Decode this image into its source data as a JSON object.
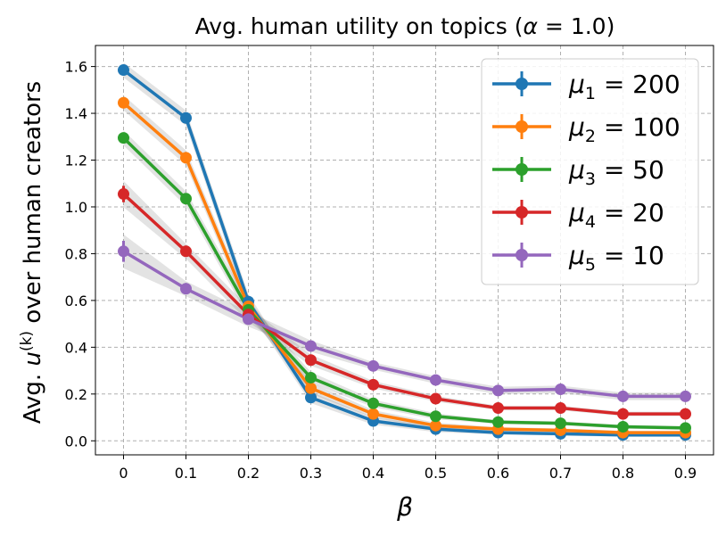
{
  "chart_data": {
    "type": "line",
    "title_prefix": "Avg. human utility on topics (",
    "title_param": "α",
    "title_suffix": " = 1.0)",
    "xlabel": "β",
    "ylabel_prefix": "Avg. ",
    "ylabel_var": "u",
    "ylabel_sup": "(k)",
    "ylabel_suffix": " over human creators",
    "x": [
      0,
      0.1,
      0.2,
      0.3,
      0.4,
      0.5,
      0.6,
      0.7,
      0.8,
      0.9
    ],
    "x_tick_labels": [
      "0",
      "0.1",
      "0.2",
      "0.3",
      "0.4",
      "0.5",
      "0.6",
      "0.7",
      "0.8",
      "0.9"
    ],
    "y_ticks": [
      0.0,
      0.2,
      0.4,
      0.6,
      0.8,
      1.0,
      1.2,
      1.4,
      1.6
    ],
    "y_tick_labels": [
      "0.0",
      "0.2",
      "0.4",
      "0.6",
      "0.8",
      "1.0",
      "1.2",
      "1.4",
      "1.6"
    ],
    "xlim": [
      -0.045,
      0.945
    ],
    "ylim": [
      -0.06,
      1.69
    ],
    "grid": true,
    "legend_position": "top-right",
    "series": [
      {
        "name": "μ1 = 200",
        "sym": "μ",
        "sub": "1",
        "eq": " = 200",
        "color": "#1f77b4",
        "values": [
          1.585,
          1.38,
          0.595,
          0.185,
          0.085,
          0.05,
          0.035,
          0.03,
          0.025,
          0.025
        ],
        "errors": [
          0.02,
          0.02,
          0.02,
          0.015,
          0.01,
          0.008,
          0.005,
          0.005,
          0.005,
          0.005
        ]
      },
      {
        "name": "μ2 = 100",
        "sym": "μ",
        "sub": "2",
        "eq": " = 100",
        "color": "#ff7f0e",
        "values": [
          1.445,
          1.21,
          0.575,
          0.225,
          0.115,
          0.065,
          0.05,
          0.045,
          0.035,
          0.035
        ],
        "errors": [
          0.02,
          0.02,
          0.02,
          0.015,
          0.01,
          0.008,
          0.005,
          0.005,
          0.005,
          0.005
        ]
      },
      {
        "name": "μ3 = 50",
        "sym": "μ",
        "sub": "3",
        "eq": " = 50",
        "color": "#2ca02c",
        "values": [
          1.295,
          1.035,
          0.56,
          0.27,
          0.16,
          0.105,
          0.08,
          0.075,
          0.06,
          0.055
        ],
        "errors": [
          0.02,
          0.02,
          0.02,
          0.015,
          0.01,
          0.008,
          0.005,
          0.005,
          0.005,
          0.005
        ]
      },
      {
        "name": "μ4 = 20",
        "sym": "μ",
        "sub": "4",
        "eq": " = 20",
        "color": "#d62728",
        "values": [
          1.055,
          0.81,
          0.54,
          0.345,
          0.24,
          0.18,
          0.14,
          0.14,
          0.115,
          0.115
        ],
        "errors": [
          0.035,
          0.02,
          0.02,
          0.015,
          0.01,
          0.008,
          0.006,
          0.006,
          0.006,
          0.006
        ]
      },
      {
        "name": "μ5 = 10",
        "sym": "μ",
        "sub": "5",
        "eq": " = 10",
        "color": "#9467bd",
        "values": [
          0.81,
          0.65,
          0.52,
          0.405,
          0.32,
          0.26,
          0.215,
          0.22,
          0.19,
          0.19
        ],
        "errors": [
          0.045,
          0.02,
          0.02,
          0.015,
          0.01,
          0.01,
          0.01,
          0.01,
          0.01,
          0.01
        ]
      }
    ]
  }
}
